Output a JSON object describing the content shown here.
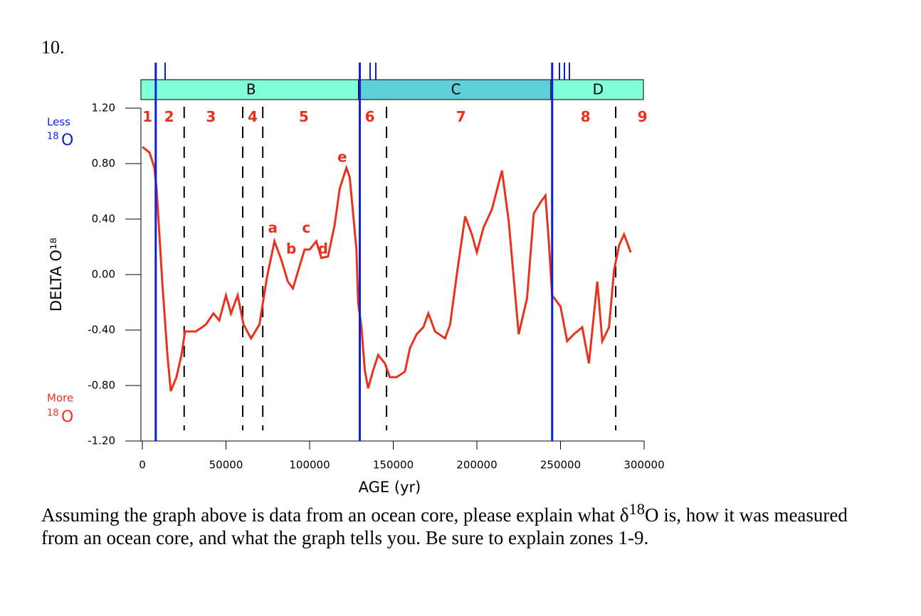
{
  "question_number": "10.",
  "chart_data": {
    "type": "line",
    "x_label": "AGE (yr)",
    "y_label": "DELTA O¹⁸",
    "less_label": "Less",
    "more_label": "More",
    "isotope": {
      "sup": "18",
      "base": "O"
    },
    "xlim": [
      0,
      300000
    ],
    "xticks": [
      0,
      50000,
      100000,
      150000,
      200000,
      250000,
      300000
    ],
    "ylim": [
      -1.2,
      1.2
    ],
    "yticks": [
      {
        "value": -1.2,
        "label": "-1.20"
      },
      {
        "value": -0.8,
        "label": "-0.80"
      },
      {
        "value": -0.4,
        "label": "-0.40"
      },
      {
        "value": 0,
        "label": "0.00"
      },
      {
        "value": 0.4,
        "label": "0.40"
      },
      {
        "value": 0.8,
        "label": "0.80"
      },
      {
        "value": 1.2,
        "label": "1.20"
      }
    ],
    "series": [
      {
        "name": "delta",
        "color": "#e8321e",
        "x": [
          0,
          4300,
          7200,
          8500,
          12000,
          15000,
          17000,
          20400,
          23400,
          25500,
          32000,
          38000,
          42500,
          46000,
          50000,
          53000,
          57000,
          60500,
          65000,
          70000,
          74500,
          79000,
          83000,
          87000,
          90000,
          94000,
          97000,
          100000,
          104000,
          107000,
          111000,
          115000,
          118000,
          122000,
          124000,
          128000,
          129000,
          131000,
          133000,
          135000,
          138000,
          141000,
          145000,
          148000,
          152000,
          157000,
          160000,
          164000,
          168000,
          171000,
          175000,
          181000,
          184000,
          188000,
          193000,
          197000,
          200000,
          204000,
          209000,
          215000,
          219000,
          222000,
          225000,
          230000,
          234000,
          238000,
          241000,
          243000,
          245000,
          250000,
          254000,
          258000,
          263000,
          267000,
          272000,
          275000,
          279000,
          282000,
          285000,
          288000,
          292000
        ],
        "values": [
          0.92,
          0.88,
          0.77,
          0.62,
          -0.07,
          -0.58,
          -0.84,
          -0.74,
          -0.58,
          -0.41,
          -0.41,
          -0.36,
          -0.28,
          -0.33,
          -0.15,
          -0.28,
          -0.15,
          -0.36,
          -0.46,
          -0.36,
          -0.02,
          0.24,
          0.11,
          -0.05,
          -0.1,
          0.06,
          0.18,
          0.18,
          0.24,
          0.12,
          0.13,
          0.36,
          0.62,
          0.77,
          0.7,
          0.18,
          -0.2,
          -0.38,
          -0.69,
          -0.82,
          -0.69,
          -0.58,
          -0.64,
          -0.74,
          -0.74,
          -0.7,
          -0.53,
          -0.43,
          -0.38,
          -0.28,
          -0.41,
          -0.46,
          -0.36,
          0,
          0.42,
          0.29,
          0.16,
          0.34,
          0.47,
          0.75,
          0.39,
          -0.02,
          -0.43,
          -0.17,
          0.44,
          0.52,
          0.57,
          0.24,
          -0.15,
          -0.23,
          -0.48,
          -0.43,
          -0.38,
          -0.64,
          -0.05,
          -0.48,
          -0.38,
          0.03,
          0.21,
          0.29,
          0.16
        ]
      }
    ],
    "stages": [
      {
        "label": "B",
        "from": 0,
        "to": 130000,
        "color": "#80ffd8"
      },
      {
        "label": "C",
        "from": 130000,
        "to": 245000,
        "color": "#60d0d8"
      },
      {
        "label": "D",
        "from": 245000,
        "to": 300000,
        "color": "#80ffd8"
      }
    ],
    "terminations": [
      8000,
      130000,
      245000
    ],
    "termination_color": "#0a1ee6",
    "zone_bounds": [
      25000,
      60000,
      72000,
      146000,
      283000
    ],
    "zones": [
      {
        "text": "1",
        "x": 3000
      },
      {
        "text": "2",
        "x": 16000
      },
      {
        "text": "3",
        "x": 41000
      },
      {
        "text": "4",
        "x": 66000
      },
      {
        "text": "5",
        "x": 96500
      },
      {
        "text": "6",
        "x": 136000
      },
      {
        "text": "7",
        "x": 190500
      },
      {
        "text": "8",
        "x": 265000
      },
      {
        "text": "9",
        "x": 299000
      }
    ],
    "zone_y": 1.13,
    "substages": [
      {
        "text": "a",
        "x": 78000,
        "y": 0.33
      },
      {
        "text": "b",
        "x": 89000,
        "y": 0.18
      },
      {
        "text": "c",
        "x": 98000,
        "y": 0.33
      },
      {
        "text": "d",
        "x": 108000,
        "y": 0.18
      },
      {
        "text": "e",
        "x": 119500,
        "y": 0.84
      }
    ]
  },
  "question": {
    "before": "Assuming the graph above is data from an ocean core, please explain what δ",
    "sup": "18",
    "after": "O is, how it was measured from an ocean core, and what the graph tells you.  Be sure to explain zones 1-9."
  }
}
